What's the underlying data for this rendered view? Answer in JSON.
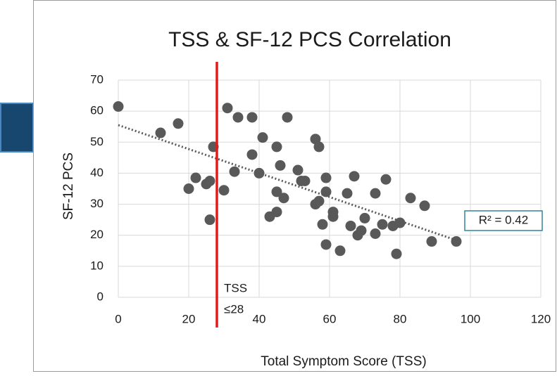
{
  "chart_data": {
    "type": "scatter",
    "title": "TSS & SF-12 PCS Correlation",
    "x_label": "Total Symptom Score (TSS)",
    "y_label": "SF-12 PCS",
    "color": "#595959",
    "x": [
      0,
      12,
      17,
      20,
      22,
      25,
      26,
      26,
      27,
      30,
      31,
      33,
      34,
      38,
      38,
      40,
      41,
      43,
      45,
      45,
      45,
      46,
      47,
      48,
      51,
      52,
      53,
      56,
      56,
      57,
      57,
      58,
      59,
      59,
      59,
      61,
      61,
      63,
      65,
      66,
      67,
      68,
      69,
      70,
      73,
      73,
      75,
      76,
      78,
      79,
      80,
      83,
      87,
      89,
      96
    ],
    "values": [
      61.5,
      53,
      56,
      35,
      38.5,
      36.5,
      37.5,
      25,
      48.5,
      34.5,
      61,
      40.5,
      58,
      58,
      46,
      40,
      51.5,
      26,
      48.5,
      34,
      27.5,
      42.5,
      32,
      58,
      41,
      37.5,
      37.5,
      51,
      30,
      48.5,
      31,
      23.5,
      38.5,
      34,
      17,
      27.5,
      26,
      15,
      33.5,
      23,
      39,
      20,
      21.5,
      25.5,
      20.5,
      33.5,
      23.5,
      38,
      23,
      14,
      24,
      32,
      29.5,
      18,
      18
    ],
    "trendline": {
      "x": [
        0,
        96
      ],
      "values": [
        55.5,
        18.4
      ],
      "r2_label": "R² = 0.42"
    },
    "threshold": {
      "x": 28,
      "color": "#e31a1c",
      "label_lines": [
        "TSS",
        "≤28"
      ]
    },
    "xlim": [
      0,
      120
    ],
    "xticks": [
      0,
      20,
      40,
      60,
      80,
      100,
      120
    ],
    "ylim": [
      0,
      70
    ],
    "yticks": [
      0,
      10,
      20,
      30,
      40,
      50,
      60,
      70
    ],
    "grid": true
  }
}
